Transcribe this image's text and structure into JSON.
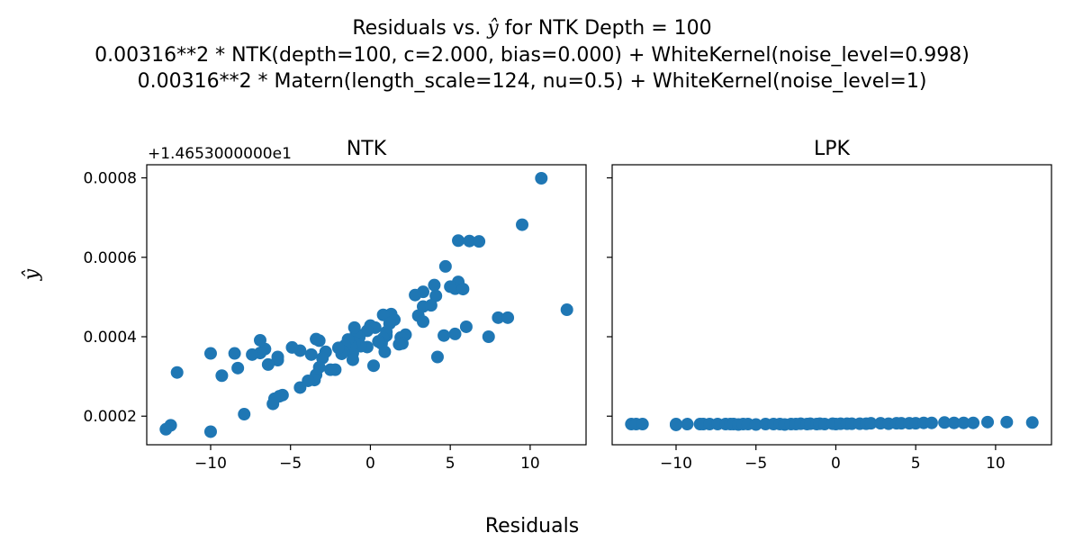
{
  "figure": {
    "title_lines": [
      {
        "prefix": "Residuals vs. ",
        "math": "ŷ",
        "suffix": " for NTK Depth = 100"
      },
      {
        "text": "0.00316**2 * NTK(depth=100, c=2.000, bias=0.000) + WhiteKernel(noise_level=0.998)"
      },
      {
        "text": "0.00316**2 * Matern(length_scale=124, nu=0.5) + WhiteKernel(noise_level=1)"
      }
    ],
    "supxlabel": "Residuals",
    "supylabel": "ŷ"
  },
  "chart_data": [
    {
      "type": "scatter",
      "title": "NTK",
      "marker_color": "#1f77b4",
      "xlim": [
        -14,
        13.5
      ],
      "ylim": [
        0.000128,
        0.000833
      ],
      "y_offset_label": "+1.4653000000e1",
      "y_offset": 14.653,
      "x_ticks": [
        -10,
        -5,
        0,
        5,
        10
      ],
      "x_tick_labels": [
        "−10",
        "−5",
        "0",
        "5",
        "10"
      ],
      "y_ticks": [
        0.0002,
        0.0004,
        0.0006,
        0.0008
      ],
      "y_tick_labels": [
        "0.0002",
        "0.0004",
        "0.0006",
        "0.0008"
      ],
      "points": [
        [
          10.7,
          0.000799
        ],
        [
          9.5,
          0.000682
        ],
        [
          12.3,
          0.000468
        ],
        [
          5.5,
          0.000642
        ],
        [
          6.2,
          0.000641
        ],
        [
          6.8,
          0.00064
        ],
        [
          4.7,
          0.000577
        ],
        [
          5.5,
          0.000538
        ],
        [
          5.3,
          0.000521
        ],
        [
          5.8,
          0.00052
        ],
        [
          5.0,
          0.000526
        ],
        [
          4.0,
          0.00053
        ],
        [
          3.3,
          0.000513
        ],
        [
          4.1,
          0.000503
        ],
        [
          2.8,
          0.000505
        ],
        [
          3.3,
          0.000476
        ],
        [
          3.8,
          0.000479
        ],
        [
          3.0,
          0.000453
        ],
        [
          3.3,
          0.000438
        ],
        [
          6.0,
          0.000425
        ],
        [
          7.4,
          0.0004
        ],
        [
          8.0,
          0.000448
        ],
        [
          8.6,
          0.000448
        ],
        [
          5.3,
          0.000407
        ],
        [
          4.6,
          0.000403
        ],
        [
          4.2,
          0.000349
        ],
        [
          2.2,
          0.000405
        ],
        [
          1.9,
          0.000398
        ],
        [
          2.0,
          0.000383
        ],
        [
          1.8,
          0.000381
        ],
        [
          1.5,
          0.000443
        ],
        [
          1.3,
          0.000457
        ],
        [
          0.8,
          0.000455
        ],
        [
          1.2,
          0.000433
        ],
        [
          1.0,
          0.000403
        ],
        [
          1.0,
          0.000412
        ],
        [
          0.8,
          0.000396
        ],
        [
          0.7,
          0.000383
        ],
        [
          0.9,
          0.000362
        ],
        [
          0.5,
          0.000388
        ],
        [
          0.0,
          0.000428
        ],
        [
          0.3,
          0.000423
        ],
        [
          -0.2,
          0.000374
        ],
        [
          -0.2,
          0.000415
        ],
        [
          0.2,
          0.000327
        ],
        [
          -0.6,
          0.000376
        ],
        [
          -0.7,
          0.000398
        ],
        [
          -0.9,
          0.000409
        ],
        [
          -1.0,
          0.000423
        ],
        [
          -1.0,
          0.000385
        ],
        [
          -1.1,
          0.000359
        ],
        [
          -1.1,
          0.000342
        ],
        [
          -1.2,
          0.000377
        ],
        [
          -1.4,
          0.000393
        ],
        [
          -1.6,
          0.000378
        ],
        [
          -1.7,
          0.000362
        ],
        [
          -1.8,
          0.000357
        ],
        [
          -2.0,
          0.000372
        ],
        [
          -2.2,
          0.000317
        ],
        [
          -2.5,
          0.000317
        ],
        [
          -2.8,
          0.000362
        ],
        [
          -3.0,
          0.000346
        ],
        [
          -3.2,
          0.00039
        ],
        [
          -3.4,
          0.000394
        ],
        [
          -3.2,
          0.000323
        ],
        [
          -3.4,
          0.000304
        ],
        [
          -3.5,
          0.000291
        ],
        [
          -3.7,
          0.000355
        ],
        [
          -3.9,
          0.000289
        ],
        [
          -4.4,
          0.000272
        ],
        [
          -4.4,
          0.000365
        ],
        [
          -4.9,
          0.000373
        ],
        [
          -5.5,
          0.000253
        ],
        [
          -5.7,
          0.00025
        ],
        [
          -5.8,
          0.000341
        ],
        [
          -5.8,
          0.000349
        ],
        [
          -6.0,
          0.000244
        ],
        [
          -6.1,
          0.000231
        ],
        [
          -6.4,
          0.00033
        ],
        [
          -6.6,
          0.000369
        ],
        [
          -6.9,
          0.000359
        ],
        [
          -6.9,
          0.000391
        ],
        [
          -7.4,
          0.000355
        ],
        [
          -7.9,
          0.000205
        ],
        [
          -8.3,
          0.000321
        ],
        [
          -8.5,
          0.000358
        ],
        [
          -9.3,
          0.000302
        ],
        [
          -10.0,
          0.000358
        ],
        [
          -10.0,
          0.000161
        ],
        [
          -12.1,
          0.00031
        ],
        [
          -12.5,
          0.000177
        ],
        [
          -12.8,
          0.000167
        ]
      ]
    },
    {
      "type": "scatter",
      "title": "LPK",
      "marker_color": "#1f77b4",
      "xlim": [
        -14,
        13.5
      ],
      "ylim": [
        0.000128,
        0.000833
      ],
      "shared_y": true,
      "x_ticks": [
        -10,
        -5,
        0,
        5,
        10
      ],
      "x_tick_labels": [
        "−10",
        "−5",
        "0",
        "5",
        "10"
      ],
      "y_ticks": [
        0.0002,
        0.0004,
        0.0006,
        0.0008
      ],
      "points": [
        [
          -12.8,
          0.00018
        ],
        [
          -12.5,
          0.00018
        ],
        [
          -12.1,
          0.00018
        ],
        [
          -10.0,
          0.00018
        ],
        [
          -10.0,
          0.000178
        ],
        [
          -9.3,
          0.00018
        ],
        [
          -8.5,
          0.00018
        ],
        [
          -8.3,
          0.00018
        ],
        [
          -7.9,
          0.00018
        ],
        [
          -7.4,
          0.00018
        ],
        [
          -6.9,
          0.00018
        ],
        [
          -6.6,
          0.00018
        ],
        [
          -6.4,
          0.00018
        ],
        [
          -6.1,
          0.000179
        ],
        [
          -5.8,
          0.00018
        ],
        [
          -5.5,
          0.00018
        ],
        [
          -5.0,
          0.000179
        ],
        [
          -4.4,
          0.00018
        ],
        [
          -3.9,
          0.00018
        ],
        [
          -3.5,
          0.00018
        ],
        [
          -3.2,
          0.000179
        ],
        [
          -2.8,
          0.00018
        ],
        [
          -2.5,
          0.00018
        ],
        [
          -2.2,
          0.000181
        ],
        [
          -1.8,
          0.00018
        ],
        [
          -1.6,
          0.000181
        ],
        [
          -1.2,
          0.00018
        ],
        [
          -1.0,
          0.000181
        ],
        [
          -0.7,
          0.00018
        ],
        [
          -0.2,
          0.000181
        ],
        [
          0.0,
          0.00018
        ],
        [
          0.3,
          0.000181
        ],
        [
          0.7,
          0.000181
        ],
        [
          1.0,
          0.000181
        ],
        [
          1.5,
          0.000181
        ],
        [
          1.9,
          0.000181
        ],
        [
          2.2,
          0.000182
        ],
        [
          2.8,
          0.000182
        ],
        [
          3.3,
          0.000181
        ],
        [
          3.8,
          0.000182
        ],
        [
          4.1,
          0.000182
        ],
        [
          4.6,
          0.000182
        ],
        [
          5.0,
          0.000182
        ],
        [
          5.5,
          0.000183
        ],
        [
          6.0,
          0.000183
        ],
        [
          6.8,
          0.000184
        ],
        [
          7.4,
          0.000183
        ],
        [
          8.0,
          0.000183
        ],
        [
          8.6,
          0.000183
        ],
        [
          9.5,
          0.000185
        ],
        [
          10.7,
          0.000185
        ],
        [
          12.3,
          0.000184
        ]
      ]
    }
  ]
}
